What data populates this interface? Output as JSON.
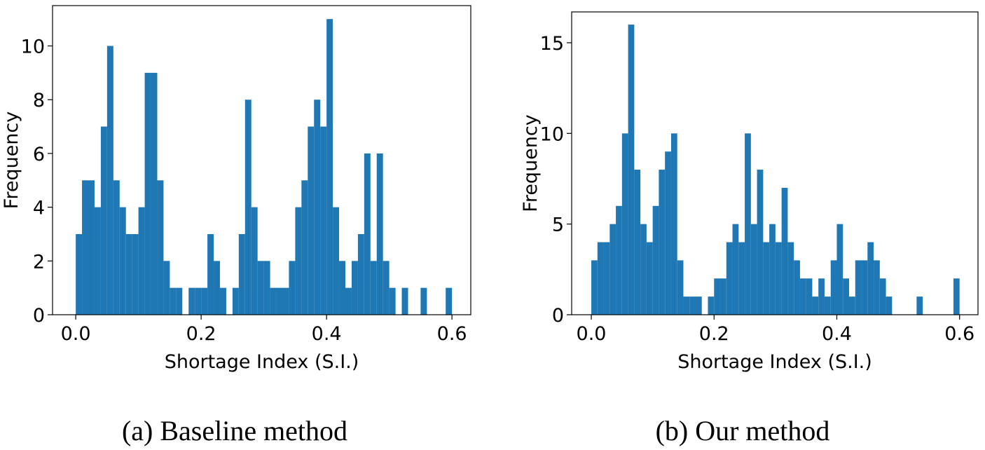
{
  "chart_data": [
    {
      "type": "histogram",
      "caption": "(a) Baseline method",
      "xlabel": "Shortage Index (S.I.)",
      "ylabel": "Frequency",
      "color": "#1f77b4",
      "bins": [
        0,
        0.01,
        0.02,
        0.03,
        0.04,
        0.05,
        0.06,
        0.07,
        0.08,
        0.09,
        0.1,
        0.11,
        0.12,
        0.13,
        0.14,
        0.15,
        0.16,
        0.17,
        0.18,
        0.19,
        0.2,
        0.21,
        0.22,
        0.23,
        0.24,
        0.25,
        0.26,
        0.27,
        0.28,
        0.29,
        0.3,
        0.31,
        0.32,
        0.33,
        0.34,
        0.35,
        0.36,
        0.37,
        0.38,
        0.39,
        0.4,
        0.41,
        0.42,
        0.43,
        0.44,
        0.45,
        0.46,
        0.47,
        0.48,
        0.49,
        0.5,
        0.51,
        0.52,
        0.53,
        0.54,
        0.55,
        0.56,
        0.57,
        0.58,
        0.59,
        0.6
      ],
      "counts": [
        3,
        5,
        5,
        4,
        7,
        10,
        5,
        4,
        3,
        3,
        4,
        9,
        9,
        5,
        2,
        1,
        1,
        0,
        1,
        1,
        1,
        3,
        2,
        1,
        0,
        1,
        3,
        8,
        4,
        2,
        2,
        1,
        1,
        1,
        2,
        4,
        5,
        7,
        8,
        7,
        11,
        4,
        2,
        1,
        2,
        3,
        6,
        2,
        6,
        2,
        1,
        0,
        1,
        0,
        0,
        1,
        0,
        0,
        0,
        1
      ],
      "xlim": [
        -0.037,
        0.63
      ],
      "ylim": [
        0,
        11.5
      ],
      "xticks": [
        {
          "value": 0,
          "label": "0.0"
        },
        0.2,
        0.4,
        0.6
      ],
      "yticks": [
        0,
        2,
        4,
        6,
        8,
        10
      ]
    },
    {
      "type": "histogram",
      "caption": "(b) Our method",
      "xlabel": "Shortage Index (S.I.)",
      "ylabel": "Frequency",
      "color": "#1f77b4",
      "bins": [
        0,
        0.01,
        0.02,
        0.03,
        0.04,
        0.05,
        0.06,
        0.07,
        0.08,
        0.09,
        0.1,
        0.11,
        0.12,
        0.13,
        0.14,
        0.15,
        0.16,
        0.17,
        0.18,
        0.19,
        0.2,
        0.21,
        0.22,
        0.23,
        0.24,
        0.25,
        0.26,
        0.27,
        0.28,
        0.29,
        0.3,
        0.31,
        0.32,
        0.33,
        0.34,
        0.35,
        0.36,
        0.37,
        0.38,
        0.39,
        0.4,
        0.41,
        0.42,
        0.43,
        0.44,
        0.45,
        0.46,
        0.47,
        0.48,
        0.49,
        0.5,
        0.51,
        0.52,
        0.53,
        0.54,
        0.55,
        0.56,
        0.57,
        0.58,
        0.59,
        0.6
      ],
      "counts": [
        3,
        4,
        4,
        5,
        6,
        10,
        16,
        8,
        5,
        4,
        6,
        8,
        9,
        10,
        3,
        1,
        1,
        1,
        0,
        1,
        2,
        2,
        4,
        5,
        4,
        10,
        5,
        8,
        4,
        5,
        4,
        7,
        4,
        3,
        2,
        2,
        1,
        2,
        1,
        3,
        5,
        2,
        1,
        3,
        3,
        4,
        3,
        2,
        1,
        0,
        0,
        0,
        0,
        1,
        0,
        0,
        0,
        0,
        0,
        2
      ],
      "xlim": [
        -0.032,
        0.63
      ],
      "ylim": [
        0,
        16.7
      ],
      "xticks": [
        {
          "value": 0,
          "label": "0.0"
        },
        0.2,
        0.4,
        0.6
      ],
      "yticks": [
        0,
        5,
        10,
        15
      ]
    }
  ]
}
